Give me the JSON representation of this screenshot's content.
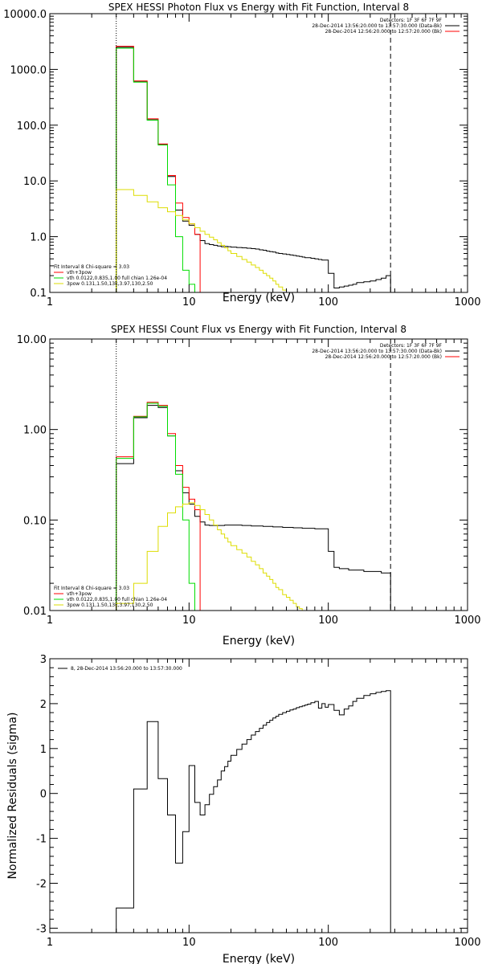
{
  "chart_data": [
    {
      "type": "line",
      "title": "SPEX HESSI Photon Flux vs Energy with Fit Function, Interval 8",
      "xlabel": "Energy (keV)",
      "ylabel": "",
      "x_scale": "log",
      "y_scale": "log",
      "xlim": [
        1,
        1000
      ],
      "ylim": [
        0.1,
        10000
      ],
      "x_ticks": [
        1,
        10,
        100,
        1000
      ],
      "x_tick_labels": [
        "1",
        "10",
        "100",
        "1000"
      ],
      "y_ticks": [
        0.1,
        1,
        10,
        100,
        1000,
        10000
      ],
      "y_tick_labels": [
        "0.1",
        "1.0",
        "10.0",
        "100.0",
        "1000.0",
        "10000.0"
      ],
      "vlines": [
        {
          "x": 3,
          "style": "dotted"
        },
        {
          "x": 280,
          "style": "dashed"
        }
      ],
      "legend_top": [
        "Detectors: 1F 3F 6F 7F 9F",
        "28-Dec-2014 13:56:20.000 to 13:57:30.000 (Data-Bk)",
        "28-Dec-2014 12:56:20.000 to 12:57:20.000 (Bk)"
      ],
      "legend_top_colors": [
        "",
        "#000000",
        "#ff0000"
      ],
      "legend_bottom": [
        "Fit Interval 8   Chi-square = 3.03",
        "vth+3pow",
        "vth 0.0122,0.835,1.00  full chian 1.26e-04",
        "3pow 0.131,1.50,13k,3.97,130,2.50"
      ],
      "legend_bottom_colors": [
        "",
        "#ff0000",
        "#00dd00",
        "#dddd00"
      ],
      "edges": [
        3,
        4,
        5,
        6,
        7,
        8,
        9,
        10,
        11,
        12,
        13,
        14,
        15,
        16,
        17,
        18,
        19,
        20,
        22,
        24,
        26,
        28,
        30,
        32,
        34,
        36,
        38,
        40,
        42,
        44,
        47,
        50,
        53,
        56,
        59,
        62,
        65,
        68,
        71,
        75,
        80,
        85,
        90,
        95,
        100,
        110,
        120,
        130,
        140,
        150,
        160,
        180,
        200,
        220,
        240,
        260,
        280
      ],
      "series": [
        {
          "color": "#000000",
          "values": [
            2500,
            600,
            125,
            45,
            12,
            3.0,
            1.9,
            1.6,
            1.1,
            0.85,
            0.75,
            0.72,
            0.7,
            0.68,
            0.66,
            0.67,
            0.66,
            0.65,
            0.64,
            0.63,
            0.62,
            0.61,
            0.6,
            0.58,
            0.57,
            0.55,
            0.54,
            0.53,
            0.51,
            0.5,
            0.49,
            0.48,
            0.47,
            0.46,
            0.45,
            0.44,
            0.43,
            0.42,
            0.42,
            0.41,
            0.4,
            0.39,
            0.38,
            0.38,
            0.22,
            0.12,
            0.125,
            0.13,
            0.135,
            0.14,
            0.15,
            0.155,
            0.16,
            0.17,
            0.18,
            0.2
          ]
        },
        {
          "color": "#ff0000",
          "values": [
            2600,
            620,
            130,
            46,
            12.5,
            4.0,
            2.2,
            1.7,
            1.1
          ]
        },
        {
          "color": "#00dd00",
          "values": [
            2400,
            590,
            123,
            44,
            8.5,
            1.0,
            0.25,
            0.14
          ]
        },
        {
          "color": "#dddd00",
          "values": [
            7.0,
            5.5,
            4.2,
            3.3,
            2.8,
            2.4,
            2.0,
            1.7,
            1.45,
            1.25,
            1.1,
            0.98,
            0.88,
            0.78,
            0.7,
            0.63,
            0.56,
            0.5,
            0.44,
            0.39,
            0.35,
            0.31,
            0.28,
            0.25,
            0.22,
            0.2,
            0.18,
            0.16,
            0.14,
            0.125,
            0.11,
            0.1,
            0.09
          ]
        }
      ]
    },
    {
      "type": "line",
      "title": "SPEX HESSI Count Flux vs Energy with Fit Function, Interval 8",
      "xlabel": "Energy (keV)",
      "ylabel": "",
      "x_scale": "log",
      "y_scale": "log",
      "xlim": [
        1,
        1000
      ],
      "ylim": [
        0.01,
        10
      ],
      "x_ticks": [
        1,
        10,
        100,
        1000
      ],
      "x_tick_labels": [
        "1",
        "10",
        "100",
        "1000"
      ],
      "y_ticks": [
        0.01,
        0.1,
        1,
        10
      ],
      "y_tick_labels": [
        "0.01",
        "0.10",
        "1.00",
        "10.00"
      ],
      "vlines": [
        {
          "x": 3,
          "style": "dotted"
        },
        {
          "x": 280,
          "style": "dashed"
        }
      ],
      "legend_top": [
        "Detectors: 1F 3F 6F 7F 9F",
        "28-Dec-2014 13:56:20.000 to 13:57:30.000 (Data-Bk)",
        "28-Dec-2014 12:56:20.000 to 12:57:20.000 (Bk)"
      ],
      "legend_top_colors": [
        "",
        "#000000",
        "#ff0000"
      ],
      "legend_bottom": [
        "Fit Interval 8   Chi-square = 3.03",
        "vth+3pow",
        "vth 0.0122,0.835,1.00  full chian 1.26e-04",
        "3pow 0.131,1.50,13k,3.97,130,2.50"
      ],
      "legend_bottom_colors": [
        "",
        "#ff0000",
        "#00dd00",
        "#dddd00"
      ],
      "edges": [
        3,
        4,
        5,
        6,
        7,
        8,
        9,
        10,
        11,
        12,
        13,
        14,
        15,
        16,
        17,
        18,
        19,
        20,
        22,
        24,
        26,
        28,
        30,
        32,
        34,
        36,
        38,
        40,
        42,
        44,
        47,
        50,
        53,
        56,
        59,
        62,
        65,
        68,
        71,
        75,
        80,
        85,
        90,
        95,
        100,
        110,
        120,
        130,
        140,
        150,
        160,
        180,
        200,
        220,
        240,
        260,
        280
      ],
      "series": [
        {
          "color": "#000000",
          "values": [
            0.42,
            1.35,
            1.85,
            1.75,
            0.85,
            0.35,
            0.2,
            0.15,
            0.11,
            0.095,
            0.088,
            0.087,
            0.087,
            0.087,
            0.087,
            0.088,
            0.088,
            0.088,
            0.088,
            0.087,
            0.087,
            0.086,
            0.086,
            0.086,
            0.085,
            0.085,
            0.085,
            0.084,
            0.084,
            0.084,
            0.083,
            0.083,
            0.083,
            0.082,
            0.082,
            0.082,
            0.081,
            0.081,
            0.081,
            0.081,
            0.08,
            0.08,
            0.08,
            0.08,
            0.045,
            0.03,
            0.029,
            0.029,
            0.028,
            0.028,
            0.028,
            0.027,
            0.027,
            0.027,
            0.026,
            0.026
          ]
        },
        {
          "color": "#ff0000",
          "values": [
            0.5,
            1.4,
            2.0,
            1.85,
            0.9,
            0.4,
            0.23,
            0.17,
            0.13
          ]
        },
        {
          "color": "#00dd00",
          "values": [
            0.48,
            1.38,
            1.95,
            1.8,
            0.85,
            0.32,
            0.1,
            0.02
          ]
        },
        {
          "color": "#dddd00",
          "values": [
            0.012,
            0.02,
            0.045,
            0.085,
            0.12,
            0.14,
            0.15,
            0.155,
            0.145,
            0.13,
            0.115,
            0.1,
            0.088,
            0.078,
            0.07,
            0.063,
            0.057,
            0.052,
            0.047,
            0.043,
            0.039,
            0.035,
            0.032,
            0.029,
            0.026,
            0.024,
            0.022,
            0.02,
            0.018,
            0.017,
            0.015,
            0.014,
            0.013,
            0.012,
            0.011,
            0.0105,
            0.01
          ]
        }
      ]
    },
    {
      "type": "line",
      "title": "",
      "xlabel": "Energy (keV)",
      "ylabel": "Normalized Residuals (sigma)",
      "x_scale": "log",
      "y_scale": "linear",
      "xlim": [
        1,
        1000
      ],
      "ylim": [
        -3.1,
        3.0
      ],
      "x_ticks": [
        1,
        10,
        100,
        1000
      ],
      "x_tick_labels": [
        "1",
        "10",
        "100",
        "1000"
      ],
      "y_ticks": [
        -3,
        -2,
        -1,
        0,
        1,
        2,
        3
      ],
      "y_tick_labels": [
        "-3",
        "-2",
        "-1",
        "0",
        "1",
        "2",
        "3"
      ],
      "legend_top": [
        "8, 28-Dec-2014 13:56:20.000 to 13:57:30.000"
      ],
      "legend_top_colors": [
        "#000000"
      ],
      "edges": [
        3,
        4,
        5,
        6,
        7,
        8,
        9,
        10,
        11,
        12,
        13,
        14,
        15,
        16,
        17,
        18,
        19,
        20,
        22,
        24,
        26,
        28,
        30,
        32,
        34,
        36,
        38,
        40,
        42,
        44,
        47,
        50,
        53,
        56,
        59,
        62,
        65,
        68,
        71,
        75,
        80,
        85,
        90,
        95,
        100,
        110,
        120,
        130,
        140,
        150,
        160,
        180,
        200,
        220,
        240,
        260,
        280
      ],
      "series": [
        {
          "color": "#000000",
          "values": [
            -2.55,
            0.1,
            1.6,
            0.33,
            -0.48,
            -1.55,
            -0.85,
            0.62,
            -0.2,
            -0.48,
            -0.25,
            -0.02,
            0.15,
            0.3,
            0.5,
            0.6,
            0.72,
            0.85,
            0.98,
            1.1,
            1.2,
            1.3,
            1.38,
            1.45,
            1.52,
            1.58,
            1.63,
            1.68,
            1.72,
            1.76,
            1.8,
            1.83,
            1.86,
            1.88,
            1.91,
            1.93,
            1.95,
            1.97,
            1.99,
            2.02,
            2.05,
            1.9,
            2.0,
            1.92,
            1.98,
            1.85,
            1.75,
            1.88,
            1.95,
            2.05,
            2.12,
            2.18,
            2.22,
            2.25,
            2.27,
            2.29
          ]
        }
      ]
    }
  ]
}
